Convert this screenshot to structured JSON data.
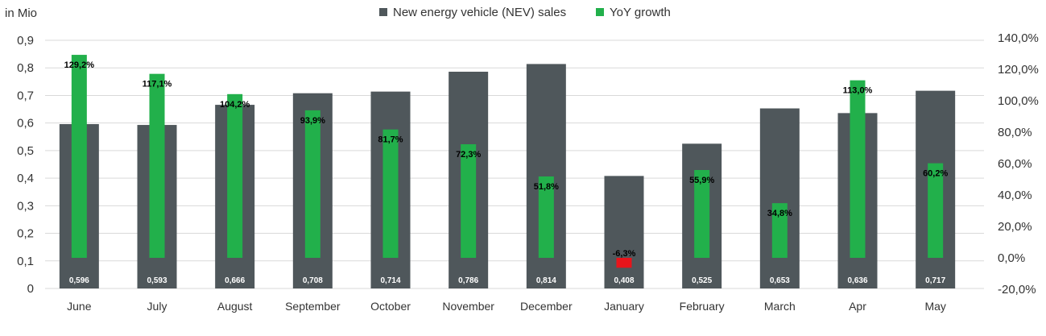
{
  "chart_data": {
    "type": "bar",
    "y_unit_label": "in Mio",
    "categories": [
      "June",
      "July",
      "August",
      "September",
      "October",
      "November",
      "December",
      "January",
      "February",
      "March",
      "Apr",
      "May"
    ],
    "series": [
      {
        "name": "New energy vehicle (NEV) sales",
        "axis": "left",
        "values": [
          0.596,
          0.593,
          0.666,
          0.708,
          0.714,
          0.786,
          0.814,
          0.408,
          0.525,
          0.653,
          0.636,
          0.717
        ],
        "labels": [
          "0,596",
          "0,593",
          "0,666",
          "0,708",
          "0,714",
          "0,786",
          "0,814",
          "0,408",
          "0,525",
          "0,653",
          "0,636",
          "0,717"
        ]
      },
      {
        "name": "YoY growth",
        "axis": "right",
        "values": [
          129.2,
          117.1,
          104.2,
          93.9,
          81.7,
          72.3,
          51.8,
          -6.3,
          55.9,
          34.8,
          113.0,
          60.2
        ],
        "labels": [
          "129,2%",
          "117,1%",
          "104,2%",
          "93,9%",
          "81,7%",
          "72,3%",
          "51,8%",
          "-6,3%",
          "55,9%",
          "34,8%",
          "113,0%",
          "60,2%"
        ]
      }
    ],
    "y_left": {
      "min": 0,
      "max": 0.9,
      "ticks": [
        "0",
        "0,1",
        "0,2",
        "0,3",
        "0,4",
        "0,5",
        "0,6",
        "0,7",
        "0,8",
        "0,9"
      ]
    },
    "y_right": {
      "min": -20,
      "max": 140,
      "ticks": [
        "-20,0%",
        "0,0%",
        "20,0%",
        "40,0%",
        "60,0%",
        "80,0%",
        "100,0%",
        "120,0%",
        "140,0%"
      ]
    },
    "grid": true,
    "legend_position": "top-center",
    "colors": {
      "sales": "#4f575b",
      "growth": "#22b04b",
      "negative": "#e8141b",
      "grid": "#d9d9d9"
    }
  }
}
